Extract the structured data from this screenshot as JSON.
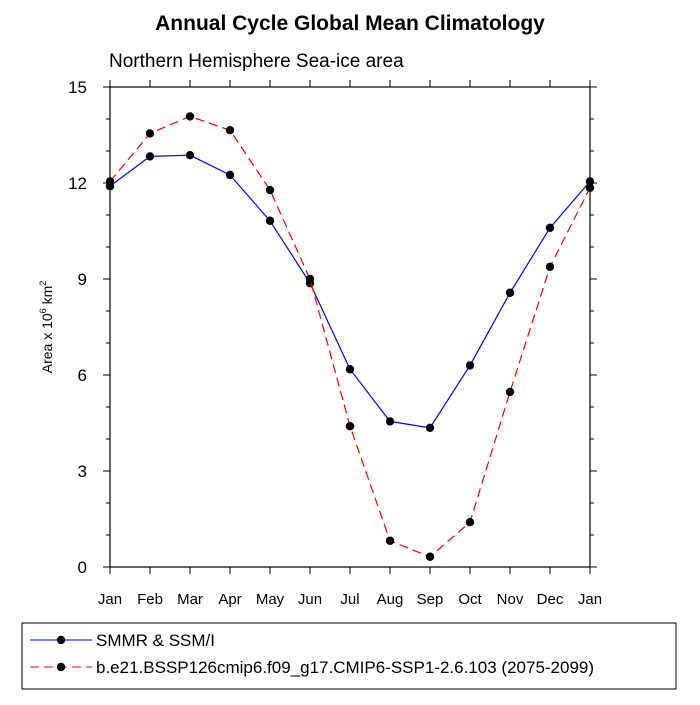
{
  "chart_data": {
    "type": "line",
    "title": "Annual Cycle Global Mean Climatology",
    "subtitle": "Northern Hemisphere Sea-ice area",
    "ylabel_text": "Area x 10",
    "ylabel_exp": "6",
    "ylabel_unit": " km",
    "ylabel_unit_exp": "2",
    "xlabel": "",
    "categories": [
      "Jan",
      "Feb",
      "Mar",
      "Apr",
      "May",
      "Jun",
      "Jul",
      "Aug",
      "Sep",
      "Oct",
      "Nov",
      "Dec",
      "Jan"
    ],
    "ylim": [
      0,
      15
    ],
    "yticks": [
      0,
      3,
      6,
      9,
      12,
      15
    ],
    "grid": false,
    "legend_position": "bottom",
    "series": [
      {
        "name": "SMMR & SSM/I",
        "color": "#0000ff",
        "dash": "solid",
        "marker": "filled-circle",
        "values": [
          11.9,
          12.83,
          12.87,
          12.25,
          10.82,
          8.87,
          6.18,
          4.55,
          4.35,
          6.3,
          8.57,
          10.6,
          12.05
        ]
      },
      {
        "name": "b.e21.BSSP126cmip6.f09_g17.CMIP6-SSP1-2.6.103 (2075-2099)",
        "color": "#ff0000",
        "dash": "dashed",
        "marker": "filled-circle",
        "values": [
          12.05,
          13.55,
          14.08,
          13.65,
          11.78,
          9.0,
          4.4,
          0.82,
          0.32,
          1.4,
          5.47,
          9.38,
          11.85
        ]
      }
    ]
  }
}
